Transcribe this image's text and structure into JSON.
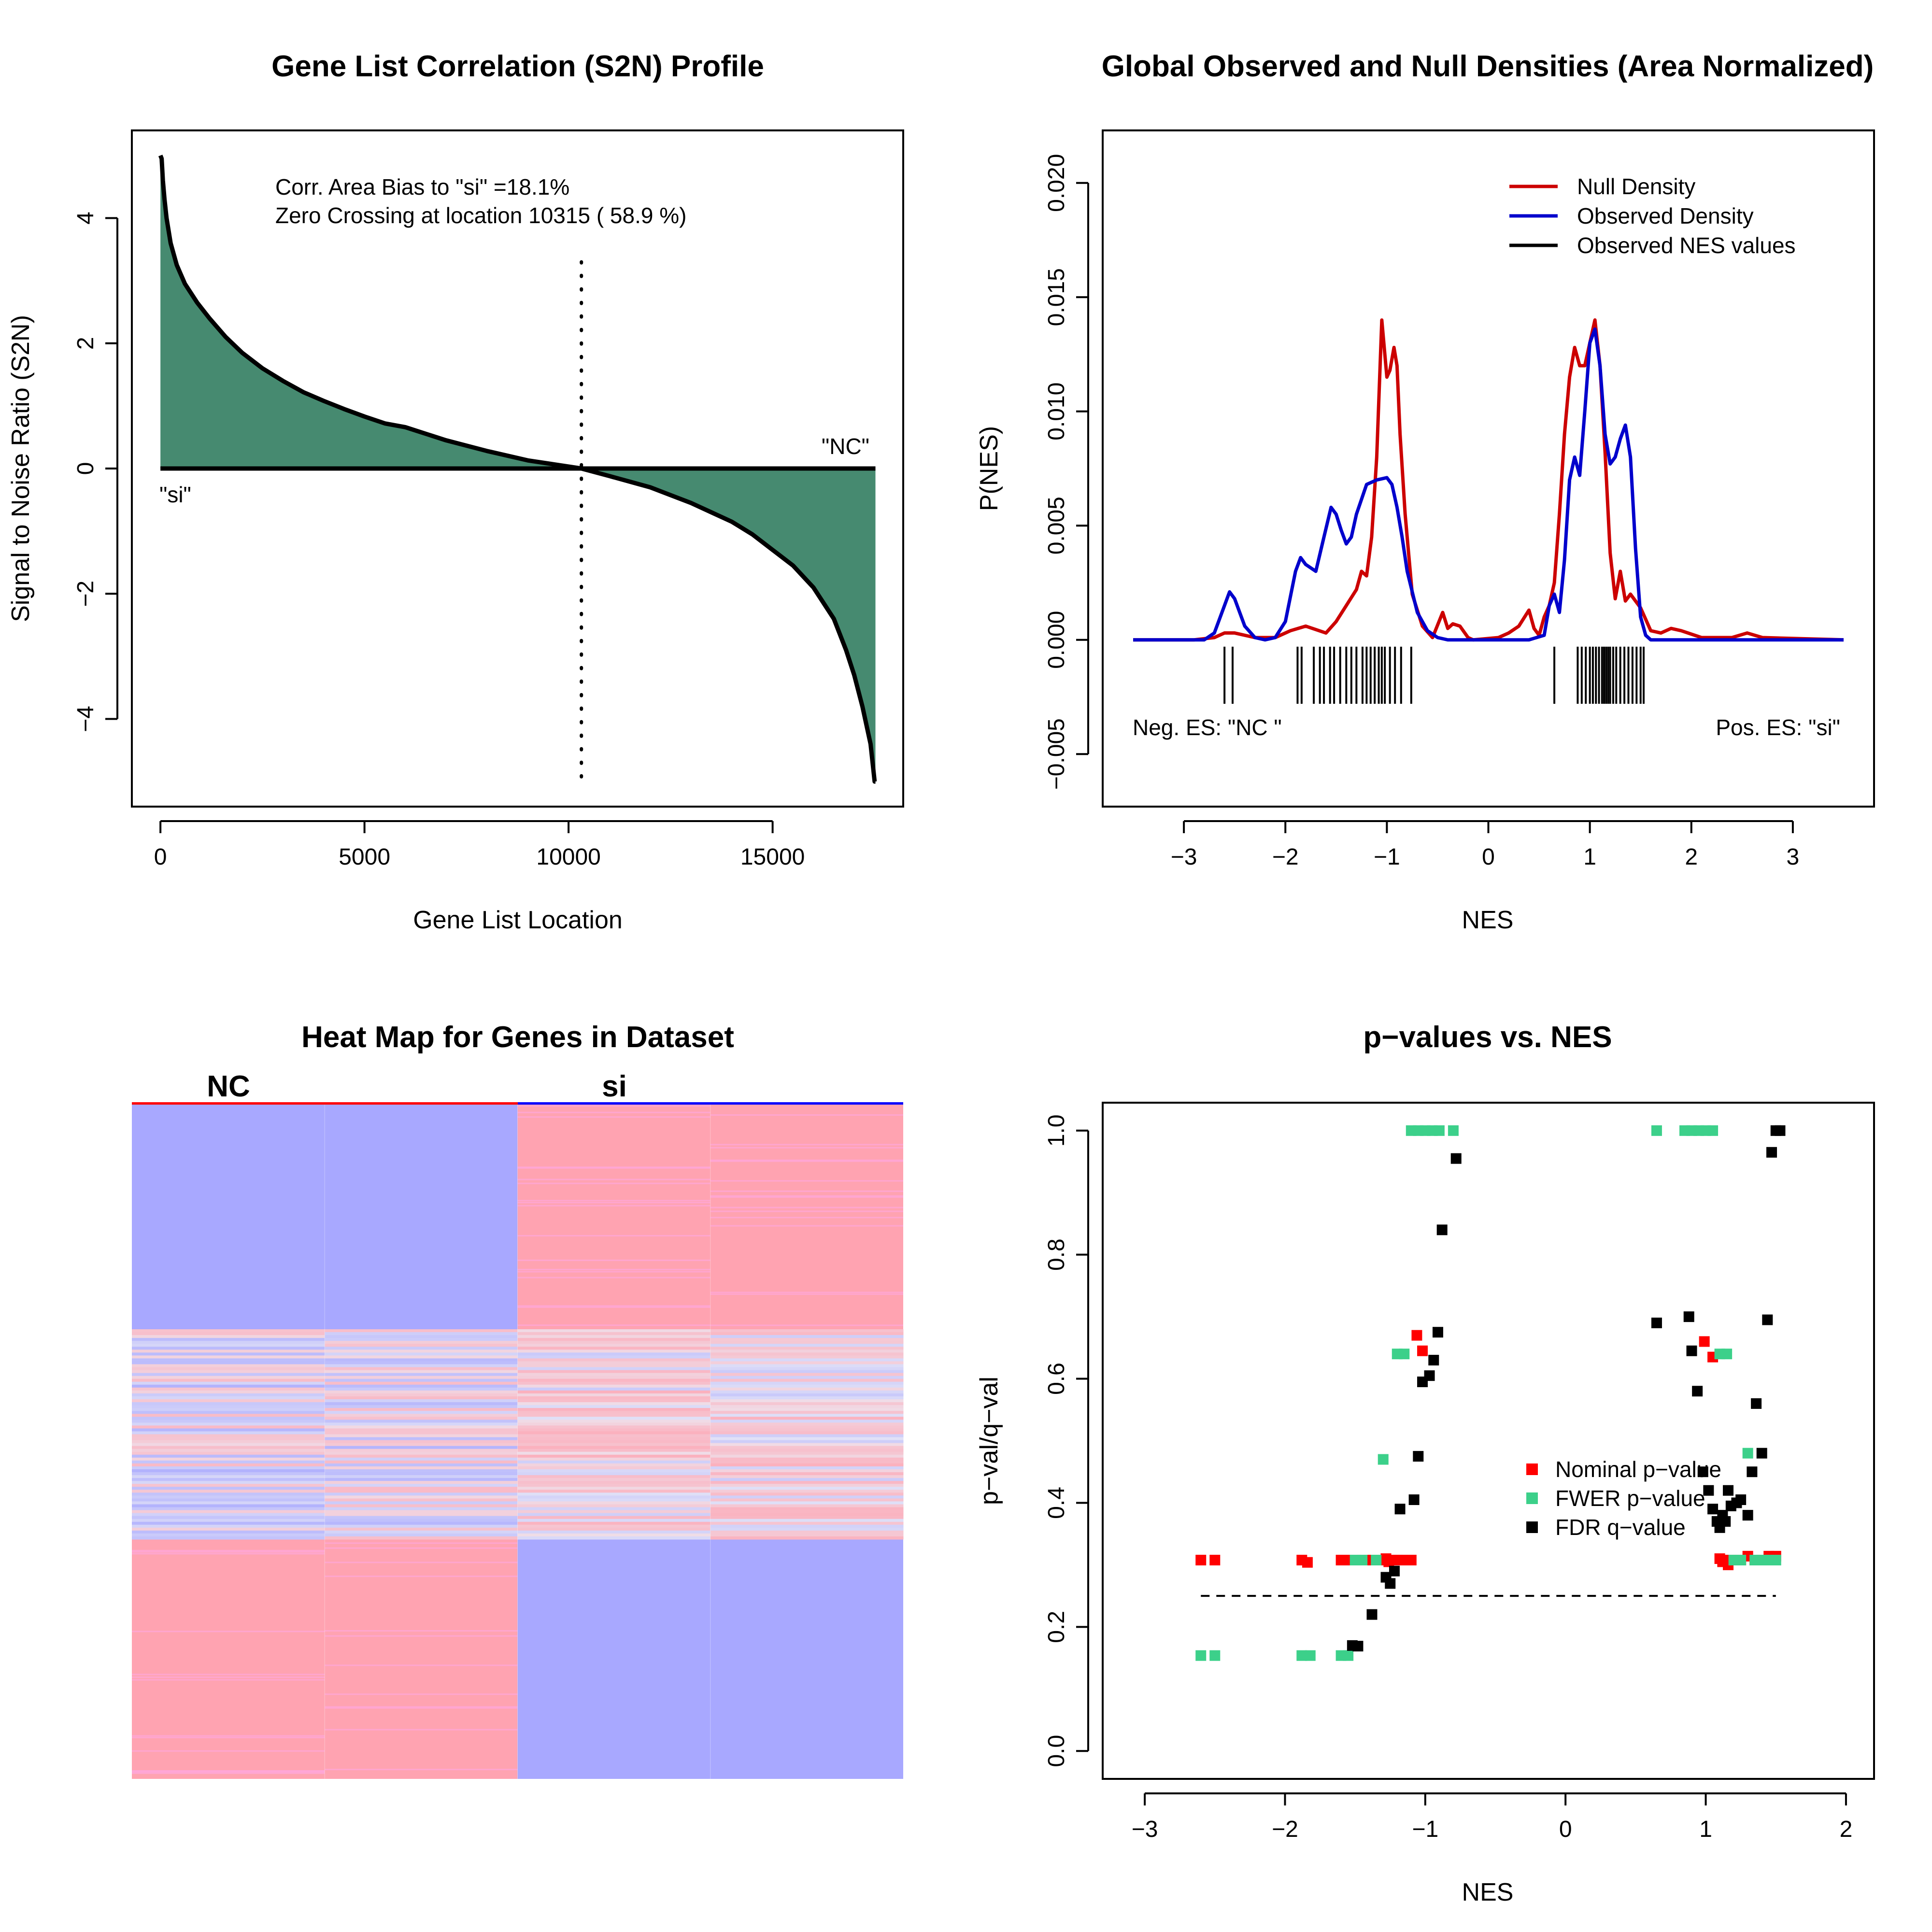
{
  "colors": {
    "area_fill": "#468a70",
    "null_density": "#cc0000",
    "observed_density": "#0000cc",
    "nominal_p": "#ff0000",
    "fwer_p": "#3cd08a",
    "fdr_q": "#000000",
    "heat_red": "#ffa3b1",
    "heat_blue": "#a8a8ff"
  },
  "chart_data": [
    {
      "type": "area",
      "title": "Gene List Correlation (S2N) Profile",
      "xlabel": "Gene List Location",
      "ylabel": "Signal to Noise Ratio (S2N)",
      "xlim": [
        -700,
        18200
      ],
      "ylim": [
        -5.4,
        5.4
      ],
      "x_ticks": [
        0,
        5000,
        10000,
        15000
      ],
      "y_ticks": [
        -4,
        -2,
        0,
        2,
        4
      ],
      "annotations": {
        "line1": "Corr. Area Bias to \"si\" =18.1%",
        "line2": "Zero Crossing at location  10315  ( 58.9  %)",
        "label_pos": "\"si\"",
        "label_neg": "\"NC\""
      },
      "zero_crossing": 10315,
      "series": [
        {
          "x": [
            0,
            30,
            60,
            100,
            150,
            250,
            400,
            600,
            900,
            1200,
            1600,
            2000,
            2500,
            3000,
            3500,
            4000,
            4500,
            5000,
            5500,
            6000,
            7000,
            8000,
            9000,
            10315,
            11000,
            12000,
            13000,
            13500,
            14000,
            14500,
            15000,
            15500,
            16000,
            16500,
            16800,
            17000,
            17200,
            17300,
            17400,
            17450,
            17500,
            17520
          ],
          "y": [
            5.0,
            4.95,
            4.6,
            4.3,
            4.0,
            3.6,
            3.25,
            2.95,
            2.65,
            2.4,
            2.1,
            1.85,
            1.6,
            1.4,
            1.22,
            1.08,
            0.95,
            0.83,
            0.72,
            0.66,
            0.45,
            0.28,
            0.13,
            0.0,
            -0.12,
            -0.3,
            -0.55,
            -0.7,
            -0.85,
            -1.05,
            -1.3,
            -1.55,
            -1.9,
            -2.4,
            -2.9,
            -3.3,
            -3.8,
            -4.1,
            -4.4,
            -4.7,
            -5.0,
            -5.0
          ]
        }
      ]
    },
    {
      "type": "line",
      "title": "Global Observed and Null Densities (Area Normalized)",
      "xlabel": "NES",
      "ylabel": "P(NES)",
      "xlim": [
        -3.8,
        3.8
      ],
      "ylim": [
        -0.0073,
        0.0223
      ],
      "x_ticks": [
        -3,
        -2,
        -1,
        0,
        1,
        2,
        3
      ],
      "y_ticks": [
        -0.005,
        0.0,
        0.005,
        0.01,
        0.015,
        0.02
      ],
      "y_tick_labels": [
        "−0.005",
        "0.000",
        "0.005",
        "0.010",
        "0.015",
        "0.020"
      ],
      "annotations": {
        "neg": "Neg. ES: \"NC \"",
        "pos": "Pos. ES: \"si\""
      },
      "legend": [
        "Null Density",
        "Observed Density",
        "Observed NES values"
      ],
      "series": [
        {
          "name": "Null Density",
          "x": [
            -3.5,
            -2.9,
            -2.7,
            -2.6,
            -2.5,
            -2.3,
            -2.1,
            -1.95,
            -1.8,
            -1.6,
            -1.5,
            -1.3,
            -1.25,
            -1.2,
            -1.15,
            -1.1,
            -1.05,
            -1.0,
            -0.97,
            -0.93,
            -0.9,
            -0.87,
            -0.82,
            -0.75,
            -0.65,
            -0.55,
            -0.45,
            -0.4,
            -0.35,
            -0.28,
            -0.2,
            -0.15,
            0.1,
            0.2,
            0.3,
            0.4,
            0.45,
            0.5,
            0.55,
            0.6,
            0.65,
            0.7,
            0.75,
            0.8,
            0.85,
            0.9,
            0.95,
            1.0,
            1.05,
            1.1,
            1.15,
            1.2,
            1.25,
            1.3,
            1.35,
            1.4,
            1.5,
            1.6,
            1.7,
            1.8,
            1.9,
            2.1,
            2.4,
            2.55,
            2.7,
            3.5
          ],
          "y": [
            0,
            0,
            0.0001,
            0.0003,
            0.0003,
            0.0001,
            0.0001,
            0.0004,
            0.0006,
            0.0003,
            0.0008,
            0.0022,
            0.003,
            0.0028,
            0.0045,
            0.008,
            0.014,
            0.0115,
            0.0118,
            0.0128,
            0.012,
            0.009,
            0.0055,
            0.002,
            0.0006,
            0.0001,
            0.0012,
            0.0005,
            0.0007,
            0.0006,
            0.0001,
            0.0,
            0.0001,
            0.0003,
            0.0006,
            0.0013,
            0.0005,
            0.0002,
            0.001,
            0.0015,
            0.0025,
            0.0055,
            0.009,
            0.0115,
            0.0128,
            0.012,
            0.012,
            0.013,
            0.014,
            0.012,
            0.0082,
            0.0038,
            0.0018,
            0.003,
            0.0017,
            0.002,
            0.0014,
            0.0004,
            0.0003,
            0.0005,
            0.0004,
            0.0001,
            0.0001,
            0.0003,
            0.0001,
            0
          ]
        },
        {
          "name": "Observed Density",
          "x": [
            -3.5,
            -2.8,
            -2.7,
            -2.6,
            -2.55,
            -2.5,
            -2.4,
            -2.3,
            -2.2,
            -2.1,
            -2.0,
            -1.9,
            -1.85,
            -1.8,
            -1.7,
            -1.62,
            -1.55,
            -1.5,
            -1.45,
            -1.4,
            -1.35,
            -1.3,
            -1.2,
            -1.1,
            -1.0,
            -0.95,
            -0.9,
            -0.85,
            -0.8,
            -0.7,
            -0.6,
            -0.5,
            -0.4,
            0.4,
            0.55,
            0.6,
            0.65,
            0.7,
            0.75,
            0.8,
            0.85,
            0.9,
            0.95,
            1.0,
            1.05,
            1.1,
            1.15,
            1.2,
            1.25,
            1.3,
            1.35,
            1.4,
            1.45,
            1.5,
            1.55,
            1.6,
            1.7,
            1.8,
            3.5
          ],
          "y": [
            0,
            0,
            0.0003,
            0.0015,
            0.0021,
            0.0018,
            0.0006,
            0.0001,
            0.0,
            0.0001,
            0.0008,
            0.003,
            0.0036,
            0.0033,
            0.003,
            0.0045,
            0.0058,
            0.0055,
            0.0048,
            0.0042,
            0.0045,
            0.0055,
            0.0068,
            0.007,
            0.0071,
            0.0068,
            0.0058,
            0.0045,
            0.003,
            0.0012,
            0.0004,
            0.0001,
            0,
            0,
            0.0002,
            0.0015,
            0.002,
            0.0012,
            0.0035,
            0.007,
            0.008,
            0.0072,
            0.01,
            0.013,
            0.0136,
            0.012,
            0.009,
            0.0077,
            0.008,
            0.0088,
            0.0094,
            0.008,
            0.004,
            0.001,
            0.0002,
            0,
            0,
            0,
            0
          ]
        }
      ],
      "rug_values": [
        -2.6,
        -2.52,
        -1.88,
        -1.84,
        -1.72,
        -1.66,
        -1.62,
        -1.56,
        -1.52,
        -1.46,
        -1.4,
        -1.35,
        -1.3,
        -1.24,
        -1.2,
        -1.16,
        -1.12,
        -1.08,
        -1.05,
        -1.02,
        -0.97,
        -0.92,
        -0.86,
        -0.76,
        0.65,
        0.88,
        0.92,
        0.96,
        1.0,
        1.03,
        1.06,
        1.09,
        1.12,
        1.14,
        1.16,
        1.18,
        1.2,
        1.23,
        1.26,
        1.3,
        1.34,
        1.38,
        1.42,
        1.46,
        1.5,
        1.53
      ]
    },
    {
      "type": "heatmap",
      "title": "Heat Map for Genes in Dataset",
      "groups": [
        "NC",
        "si"
      ],
      "group_colors": [
        "#ff0000",
        "#0000ff"
      ],
      "columns": 4,
      "rows": 120
    },
    {
      "type": "scatter",
      "title": "p−values vs. NES",
      "xlabel": "NES",
      "ylabel": "p−val/q−val",
      "xlim": [
        -3.3,
        2.2
      ],
      "ylim": [
        -0.045,
        1.045
      ],
      "x_ticks": [
        -3,
        -2,
        -1,
        0,
        1,
        2
      ],
      "x_tick_labels": [
        "−3",
        "−2",
        "−1",
        "0",
        "1",
        "2"
      ],
      "y_ticks": [
        0.0,
        0.2,
        0.4,
        0.6,
        0.8,
        1.0
      ],
      "y_tick_labels": [
        "0.0",
        "0.2",
        "0.4",
        "0.6",
        "0.8",
        "1.0"
      ],
      "threshold": 0.25,
      "threshold_xrange": [
        -2.6,
        1.5
      ],
      "legend": [
        "Nominal p−value",
        "FWER p−value",
        "FDR q−value"
      ],
      "series": [
        {
          "name": "Nominal p−value",
          "x": [
            -2.6,
            -2.5,
            -1.88,
            -1.84,
            -1.6,
            -1.55,
            -1.5,
            -1.45,
            -1.4,
            -1.35,
            -1.3,
            -1.28,
            -1.26,
            -1.24,
            -1.22,
            -1.2,
            -1.18,
            -1.16,
            -1.14,
            -1.1,
            -1.06,
            -1.02,
            0.99,
            1.05,
            1.1,
            1.12,
            1.14,
            1.16,
            1.18,
            1.2,
            1.22,
            1.25,
            1.3,
            1.35,
            1.4,
            1.45,
            1.5
          ],
          "y": [
            0.3077,
            0.3077,
            0.3077,
            0.304,
            0.3077,
            0.3077,
            0.3077,
            0.3077,
            0.3077,
            0.3077,
            0.3077,
            0.31,
            0.305,
            0.3077,
            0.3077,
            0.3077,
            0.3077,
            0.3077,
            0.3077,
            0.3077,
            0.67,
            0.645,
            0.66,
            0.635,
            0.31,
            0.305,
            0.3077,
            0.3,
            0.3077,
            0.3077,
            0.3077,
            0.3077,
            0.314,
            0.3077,
            0.3077,
            0.314,
            0.314
          ]
        },
        {
          "name": "FWER p−value",
          "x": [
            -2.6,
            -2.5,
            -1.88,
            -1.82,
            -1.6,
            -1.55,
            -1.5,
            -1.45,
            -1.35,
            -1.3,
            -1.2,
            -1.15,
            -1.1,
            -1.05,
            -1.0,
            -0.95,
            -0.9,
            -0.8,
            0.65,
            0.85,
            0.9,
            0.95,
            1.0,
            1.05,
            1.1,
            1.15,
            1.2,
            1.25,
            1.3,
            1.35,
            1.4,
            1.45,
            1.5
          ],
          "y": [
            0.1538,
            0.1538,
            0.1538,
            0.1538,
            0.1538,
            0.1538,
            0.3077,
            0.3077,
            0.3077,
            0.47,
            0.64,
            0.64,
            1.0,
            1.0,
            1.0,
            1.0,
            1.0,
            1.0,
            1.0,
            1.0,
            1.0,
            1.0,
            1.0,
            1.0,
            0.64,
            0.64,
            0.3077,
            0.3077,
            0.48,
            0.3077,
            0.3077,
            0.3077,
            0.3077
          ]
        },
        {
          "name": "FDR q−value",
          "x": [
            -1.52,
            -1.48,
            -1.38,
            -1.28,
            -1.25,
            -1.22,
            -1.18,
            -1.08,
            -1.05,
            -1.02,
            -0.97,
            -0.94,
            -0.91,
            -0.88,
            -0.78,
            0.65,
            0.88,
            0.9,
            0.94,
            0.98,
            1.02,
            1.05,
            1.08,
            1.1,
            1.12,
            1.14,
            1.16,
            1.18,
            1.22,
            1.25,
            1.3,
            1.33,
            1.36,
            1.4,
            1.44,
            1.47,
            1.5,
            1.53
          ],
          "y": [
            0.17,
            0.169,
            0.22,
            0.28,
            0.27,
            0.29,
            0.39,
            0.405,
            0.475,
            0.595,
            0.605,
            0.63,
            0.675,
            0.84,
            0.955,
            0.69,
            0.7,
            0.645,
            0.58,
            0.45,
            0.42,
            0.39,
            0.37,
            0.36,
            0.38,
            0.37,
            0.42,
            0.395,
            0.4,
            0.405,
            0.38,
            0.45,
            0.56,
            0.48,
            0.695,
            0.965,
            1.0,
            1.0
          ]
        }
      ]
    }
  ]
}
